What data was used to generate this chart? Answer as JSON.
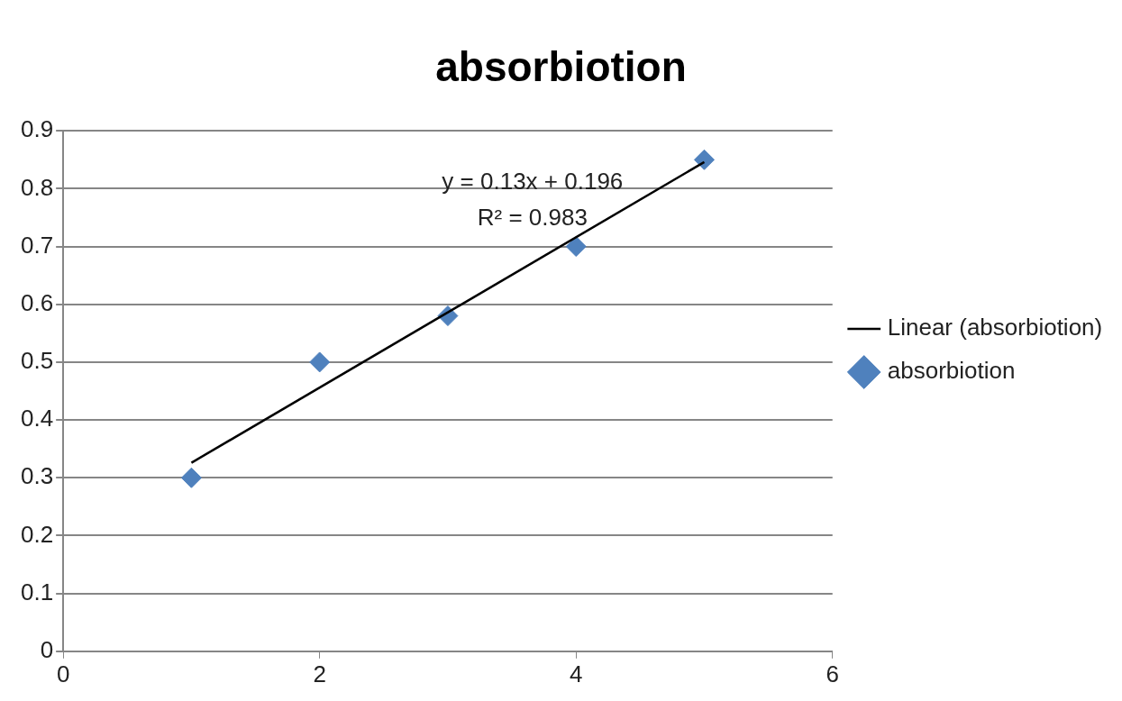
{
  "chart_data": {
    "type": "scatter",
    "title": "absorbiotion",
    "x": [
      1,
      2,
      3,
      4,
      5
    ],
    "series": [
      {
        "name": "absorbiotion",
        "type": "scatter",
        "color": "#4f81bd",
        "marker": "diamond",
        "values": [
          0.3,
          0.5,
          0.58,
          0.7,
          0.85
        ]
      },
      {
        "name": "Linear (absorbiotion)",
        "type": "line",
        "color": "#000000",
        "marker": "none",
        "line_style": "solid",
        "x": [
          1,
          5
        ],
        "values": [
          0.326,
          0.846
        ]
      }
    ],
    "xlim": [
      0,
      6
    ],
    "xticks": [
      0,
      2,
      4,
      6
    ],
    "ylim": [
      0,
      0.9
    ],
    "yticks": [
      0,
      0.1,
      0.2,
      0.3,
      0.4,
      0.5,
      0.6,
      0.7,
      0.8,
      0.9
    ],
    "grid": "y",
    "legend": "right",
    "annotations": [
      "y = 0.13x + 0.196",
      "R² = 0.983"
    ]
  }
}
